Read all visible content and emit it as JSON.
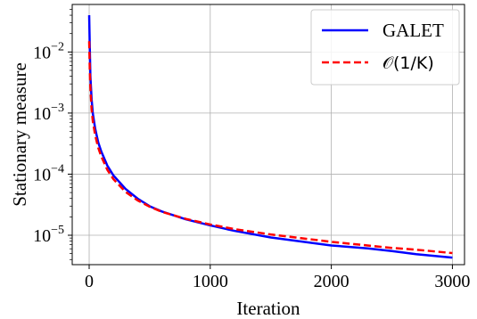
{
  "chart_data": {
    "type": "line",
    "title": "",
    "xlabel": "Iteration",
    "ylabel": "Stationary measure",
    "xlim": [
      -140,
      3100
    ],
    "ylim": [
      3.3e-06,
      0.06
    ],
    "yscale": "log",
    "grid": true,
    "legend_position": "top-right",
    "x_ticks": [
      {
        "value": 0,
        "label": "0"
      },
      {
        "value": 1000,
        "label": "1000"
      },
      {
        "value": 2000,
        "label": "2000"
      },
      {
        "value": 3000,
        "label": "3000"
      }
    ],
    "y_ticks": [
      {
        "value": 1e-05,
        "base": "10",
        "exp": "−5"
      },
      {
        "value": 0.0001,
        "base": "10",
        "exp": "−4"
      },
      {
        "value": 0.001,
        "base": "10",
        "exp": "−3"
      },
      {
        "value": 0.01,
        "base": "10",
        "exp": "−2"
      }
    ],
    "series": [
      {
        "name": "GALET",
        "color": "#0000ff",
        "style": "solid",
        "x": [
          0,
          5,
          10,
          20,
          30,
          50,
          75,
          100,
          150,
          200,
          300,
          400,
          500,
          600,
          800,
          1000,
          1200,
          1500,
          2000,
          2300,
          2500,
          2700,
          3000
        ],
        "y": [
          0.04,
          0.012,
          0.004,
          0.0017,
          0.00099,
          0.00055,
          0.00033,
          0.000235,
          0.000138,
          9.55e-05,
          5.75e-05,
          3.98e-05,
          2.98e-05,
          2.45e-05,
          1.82e-05,
          1.45e-05,
          1.18e-05,
          9.2e-06,
          6.8e-06,
          6.1e-06,
          5.5e-06,
          4.9e-06,
          4.3e-06
        ]
      },
      {
        "name": "𝒪(1/K)",
        "color": "#ff0000",
        "style": "dashed",
        "x": [
          0,
          5,
          10,
          20,
          30,
          50,
          75,
          100,
          150,
          200,
          300,
          400,
          500,
          600,
          800,
          1000,
          1200,
          1500,
          2000,
          2300,
          2500,
          2700,
          3000
        ],
        "y": [
          0.015,
          0.0052,
          0.0026,
          0.00115,
          0.00074,
          0.00043,
          0.00027,
          0.000195,
          0.000118,
          8.3e-05,
          5.13e-05,
          3.72e-05,
          2.93e-05,
          2.42e-05,
          1.85e-05,
          1.5e-05,
          1.26e-05,
          1.03e-05,
          7.8e-06,
          6.8e-06,
          6.2e-06,
          5.8e-06,
          5.1e-06
        ]
      }
    ]
  }
}
